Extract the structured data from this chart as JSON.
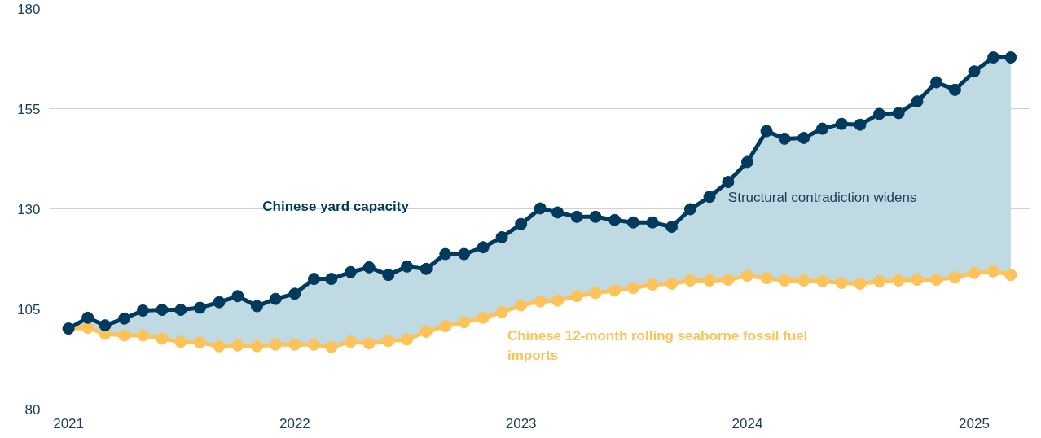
{
  "chart_data": {
    "type": "line",
    "x": [
      "2021-01",
      "2021-02",
      "2021-03",
      "2021-04",
      "2021-05",
      "2021-06",
      "2021-07",
      "2021-08",
      "2021-09",
      "2021-10",
      "2021-11",
      "2021-12",
      "2022-01",
      "2022-02",
      "2022-03",
      "2022-04",
      "2022-05",
      "2022-06",
      "2022-07",
      "2022-08",
      "2022-09",
      "2022-10",
      "2022-11",
      "2022-12",
      "2023-01",
      "2023-02",
      "2023-03",
      "2023-04",
      "2023-05",
      "2023-06",
      "2023-07",
      "2023-08",
      "2023-09",
      "2023-10",
      "2023-11",
      "2023-12",
      "2024-01",
      "2024-02",
      "2024-03",
      "2024-04",
      "2024-05",
      "2024-06",
      "2024-07",
      "2024-08",
      "2024-09",
      "2024-10",
      "2024-11",
      "2024-12",
      "2025-01",
      "2025-02",
      "2025-03"
    ],
    "series": [
      {
        "name": "Chinese yard capacity",
        "color": "#003a5d",
        "values": [
          100.1,
          102.8,
          100.9,
          102.6,
          104.6,
          104.8,
          104.8,
          105.3,
          106.7,
          108.2,
          105.7,
          107.5,
          108.8,
          112.5,
          112.5,
          114.2,
          115.4,
          113.5,
          115.6,
          115.0,
          118.7,
          118.7,
          120.4,
          122.9,
          126.2,
          130.1,
          129.1,
          128.0,
          128.0,
          127.2,
          126.6,
          126.6,
          125.5,
          129.9,
          133.0,
          136.7,
          141.7,
          149.4,
          147.5,
          147.7,
          150.0,
          151.2,
          151.0,
          153.7,
          153.9,
          156.8,
          161.6,
          159.7,
          164.3,
          167.8,
          167.8
        ],
        "lower": [
          100.1,
          100.3,
          98.8,
          98.4,
          98.4,
          97.6,
          96.8,
          96.6,
          95.7,
          95.9,
          95.7,
          96.1,
          96.1,
          96.1,
          95.5,
          96.8,
          96.4,
          97.0,
          97.4,
          99.3,
          100.7,
          101.7,
          102.8,
          104.2,
          105.9,
          106.9,
          107.1,
          108.2,
          109.0,
          109.6,
          110.2,
          111.1,
          111.3,
          112.1,
          112.1,
          112.3,
          113.3,
          112.7,
          112.1,
          112.1,
          111.9,
          111.5,
          111.3,
          111.9,
          112.1,
          112.3,
          112.3,
          112.9,
          114.0,
          114.4,
          113.5
        ],
        "upper": [
          100.1,
          102.8,
          100.9,
          102.6,
          104.6,
          104.8,
          104.8,
          105.3,
          106.7,
          108.2,
          105.7,
          107.5,
          108.8,
          112.5,
          112.5,
          114.2,
          115.4,
          113.5,
          115.6,
          115.0,
          118.7,
          118.7,
          120.4,
          122.9,
          126.2,
          130.1,
          129.1,
          128.0,
          128.0,
          127.2,
          126.6,
          126.6,
          125.5,
          129.9,
          133.0,
          136.7,
          141.7,
          149.4,
          147.5,
          147.7,
          150.0,
          151.2,
          151.0,
          153.7,
          153.9,
          156.8,
          161.6,
          159.7,
          164.3,
          167.8,
          167.8
        ]
      },
      {
        "name": "Chinese 12-month rolling seaborne fossil fuel imports",
        "color": "#fdc35a",
        "values": [
          100.1,
          100.3,
          98.8,
          98.4,
          98.4,
          97.6,
          96.8,
          96.6,
          95.7,
          95.9,
          95.7,
          96.1,
          96.1,
          96.1,
          95.5,
          96.8,
          96.4,
          97.0,
          97.4,
          99.3,
          100.7,
          101.7,
          102.8,
          104.2,
          105.9,
          106.9,
          107.1,
          108.2,
          109.0,
          109.6,
          110.2,
          111.1,
          111.3,
          112.1,
          112.1,
          112.3,
          113.3,
          112.7,
          112.1,
          112.1,
          111.9,
          111.5,
          111.3,
          111.9,
          112.1,
          112.3,
          112.3,
          112.9,
          114.0,
          114.4,
          113.5
        ]
      }
    ],
    "annotations": [
      "Structural contradiction widens"
    ],
    "xlim": [
      "2020-12",
      "2025-04"
    ],
    "xticks": [
      "2021",
      "2022",
      "2023",
      "2024",
      "2025"
    ],
    "ylim": [
      80,
      180
    ],
    "yticks": [
      80,
      105,
      130,
      155,
      180
    ],
    "grid": "y",
    "marker": "circle",
    "line_style": "solid"
  }
}
